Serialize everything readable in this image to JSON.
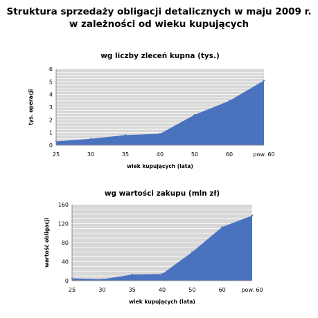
{
  "title_line1": "Struktura sprzedaży obligacji detalicznych w maju 2009 r.",
  "title_line2": "w zależności od wieku kupujących",
  "colors": {
    "area_fill": "#4a72be",
    "plot_bg": "#d8d8d8",
    "grid": "#ffffff",
    "axis": "#8c8c8c"
  },
  "chart_data": [
    {
      "type": "area",
      "title": "wg liczby zleceń kupna (tys.)",
      "xlabel": "wiek kupujących  (lata)",
      "ylabel": "tys. operacji",
      "categories": [
        "25",
        "30",
        "35",
        "40",
        "50",
        "60",
        "pow. 60"
      ],
      "values": [
        0.3,
        0.5,
        0.8,
        0.9,
        2.4,
        3.5,
        5.1
      ],
      "ylim": [
        0,
        6
      ],
      "yticks": [
        0,
        1,
        2,
        3,
        4,
        5,
        6
      ],
      "grid": true,
      "legend": "none"
    },
    {
      "type": "area",
      "title": "wg wartości zakupu (mln zł)",
      "xlabel": "wiek kupujących  (lata)",
      "ylabel": "wartość obligacji",
      "categories": [
        "25",
        "30",
        "35",
        "40",
        "50",
        "60",
        "pow. 60"
      ],
      "values": [
        5,
        3,
        13,
        14,
        60,
        113,
        137
      ],
      "ylim": [
        0,
        160
      ],
      "yticks": [
        0,
        20,
        40,
        60,
        80,
        100,
        120,
        140,
        160
      ],
      "ytick_labels": [
        "0",
        "",
        "40",
        "",
        "80",
        "",
        "120",
        "",
        "160"
      ],
      "grid": true,
      "legend": "none"
    }
  ]
}
